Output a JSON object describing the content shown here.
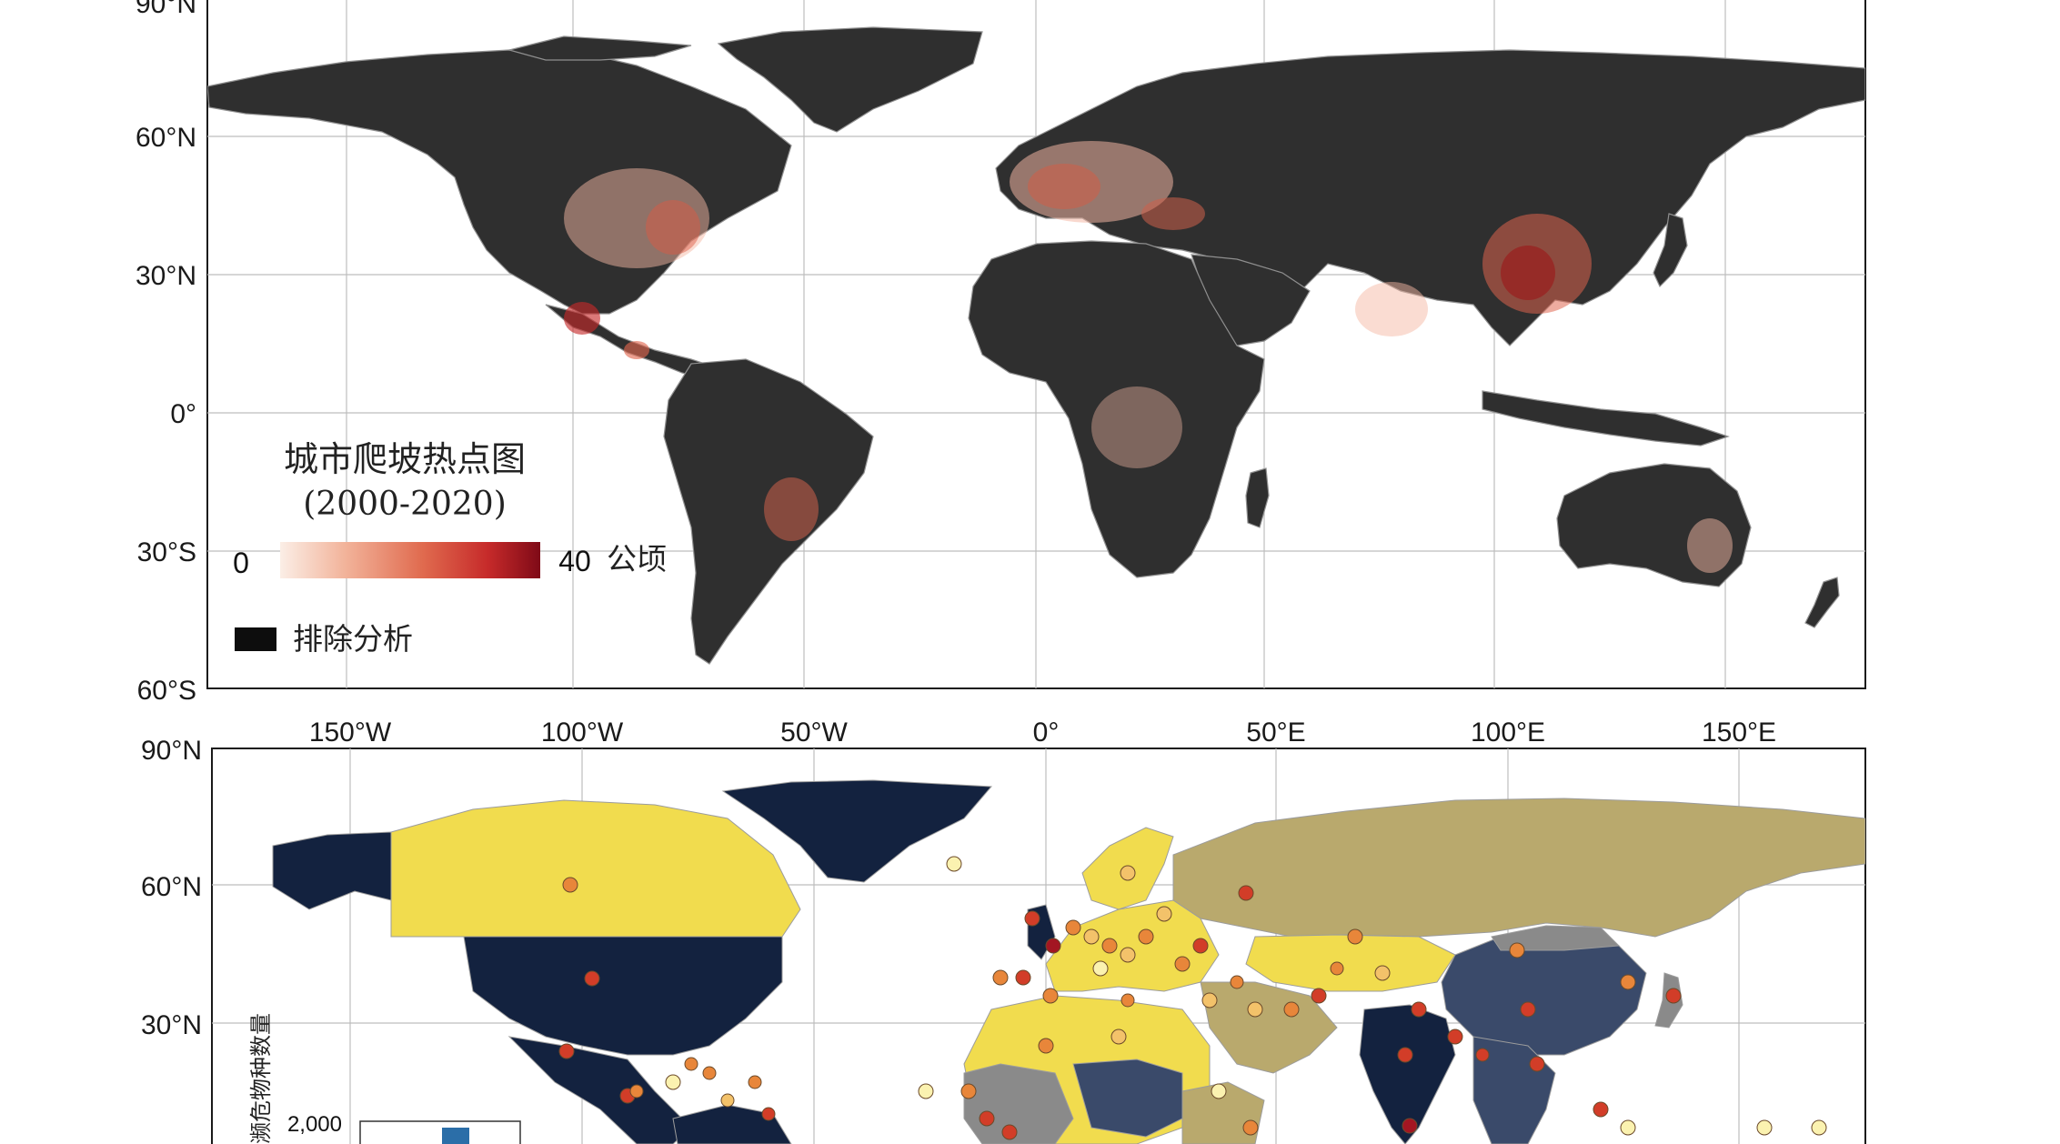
{
  "panel_top": {
    "lat_labels": [
      "90°N",
      "60°N",
      "30°N",
      "0°",
      "30°S",
      "60°S"
    ],
    "legend": {
      "title": "城市爬坡热点图",
      "subtitle": "(2000-2020)",
      "scale_min": "0",
      "scale_max": "40",
      "scale_unit": "公顷",
      "excluded_label": "排除分析",
      "ramp_colors": [
        "#fbeee6",
        "#f2b39a",
        "#e06a4e",
        "#c62a2a",
        "#7f0a17"
      ],
      "excluded_color": "#0d0d0d"
    },
    "colors": {
      "land": "#2f2f2f",
      "borders": "#9a9a9a",
      "hot_light": "#f4b8a4",
      "hot_mid": "#e0664f",
      "hot_dark": "#a81c1c"
    }
  },
  "lon_labels": [
    "150°W",
    "100°W",
    "50°W",
    "0°",
    "50°E",
    "100°E",
    "150°E"
  ],
  "panel_bottom": {
    "lat_labels": [
      "90°N",
      "60°N",
      "30°N"
    ],
    "inset": {
      "ylabel": "濒危物种数量",
      "tick": "2,000",
      "bar_color": "#2b6ea8"
    },
    "colors": {
      "navy": "#13223f",
      "slate": "#3a4a6a",
      "gray": "#8a8a8a",
      "khaki": "#b9a96d",
      "yellow": "#f1dc4e",
      "dot_pale": "#fbf2b0",
      "dot_light": "#f3c26a",
      "dot_orange": "#e8863a",
      "dot_red": "#d23d28",
      "dot_dark": "#a31622"
    }
  }
}
